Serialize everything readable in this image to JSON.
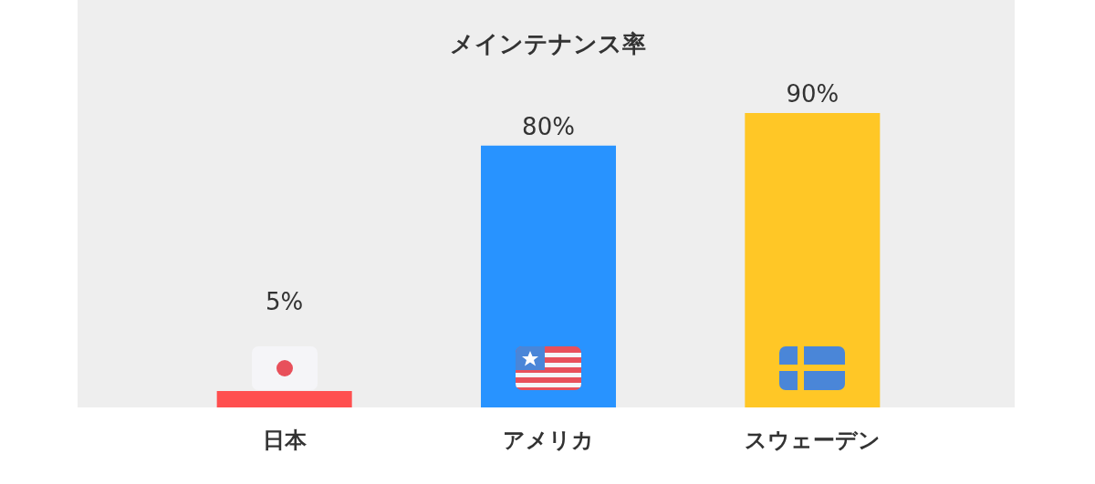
{
  "chart_data": {
    "type": "bar",
    "title": "メインテナンス率",
    "categories": [
      "日本",
      "アメリカ",
      "スウェーデン"
    ],
    "values": [
      5,
      80,
      90
    ],
    "colors": [
      "#ff4f4f",
      "#2893ff",
      "#ffc726"
    ],
    "value_labels": [
      "5%",
      "80%",
      "90%"
    ]
  }
}
